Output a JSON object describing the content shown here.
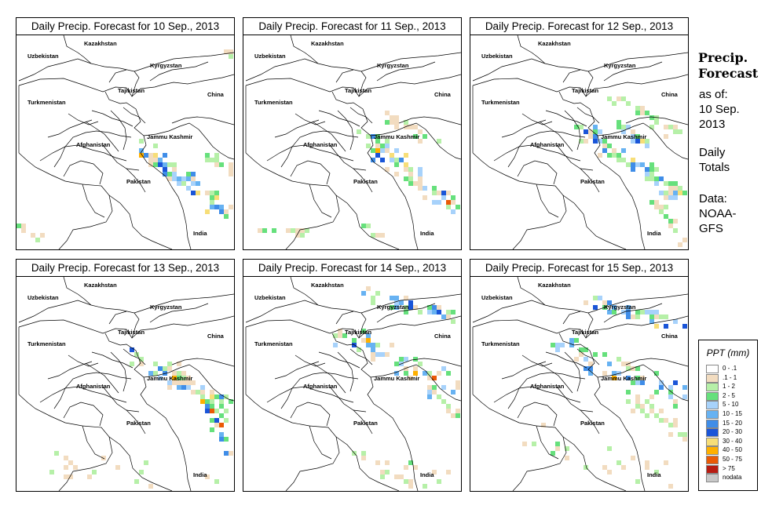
{
  "colors": {
    "bin_0": "#ffffff",
    "bin_1": "#f2dcc0",
    "bin_2": "#b6f0a8",
    "bin_3": "#66e07c",
    "bin_4": "#a7d2fb",
    "bin_5": "#67b2f2",
    "bin_6": "#3f8de8",
    "bin_7": "#1a55d8",
    "bin_8": "#f7de78",
    "bin_9": "#ffb000",
    "bin_10": "#ea5a06",
    "bin_11": "#b81c12",
    "nodata": "#c8c8c8"
  },
  "panels": [
    {
      "title": "Daily Precip. Forecast for  10 Sep., 2013"
    },
    {
      "title": "Daily Precip. Forecast for  11 Sep., 2013"
    },
    {
      "title": "Daily Precip. Forecast for  12 Sep., 2013"
    },
    {
      "title": "Daily Precip. Forecast for  13 Sep., 2013"
    },
    {
      "title": "Daily Precip. Forecast for  14 Sep., 2013"
    },
    {
      "title": "Daily Precip. Forecast for  15 Sep., 2013"
    }
  ],
  "map_labels": {
    "kazakhstan": "Kazakhstan",
    "uzbekistan": "Uzbekistan",
    "kyrgyzstan": "Kyrgyzstan",
    "tajikistan": "Tajikistan",
    "turkmenistan": "Turkmenistan",
    "china": "China",
    "afghanistan": "Afghanistan",
    "jammu_kashmir": "Jammu Kashmir",
    "pakistan": "Pakistan",
    "india": "India"
  },
  "sidebar": {
    "title_line1": "Precip.",
    "title_line2": "Forecast",
    "asof_line1": "as of:",
    "asof_line2": "10 Sep.",
    "asof_line3": "2013",
    "totals_line1": "Daily",
    "totals_line2": "Totals",
    "data_line1": "Data:",
    "data_line2": "NOAA-",
    "data_line3": "GFS"
  },
  "legend": {
    "title": "PPT (mm)",
    "items": [
      {
        "label": "0 - .1",
        "color": "#ffffff"
      },
      {
        "label": ".1 - 1",
        "color": "#f2dcc0"
      },
      {
        "label": "1 - 2",
        "color": "#b6f0a8"
      },
      {
        "label": "2 - 5",
        "color": "#66e07c"
      },
      {
        "label": "5 - 10",
        "color": "#a7d2fb"
      },
      {
        "label": "10 - 15",
        "color": "#67b2f2"
      },
      {
        "label": "15 - 20",
        "color": "#3f8de8"
      },
      {
        "label": "20 - 30",
        "color": "#1a55d8"
      },
      {
        "label": "30 - 40",
        "color": "#f7de78"
      },
      {
        "label": "40 - 50",
        "color": "#ffb000"
      },
      {
        "label": "50 - 75",
        "color": "#ea5a06"
      },
      {
        "label": "> 75",
        "color": "#b81c12"
      },
      {
        "label": "nodata",
        "color": "#c8c8c8"
      }
    ]
  }
}
